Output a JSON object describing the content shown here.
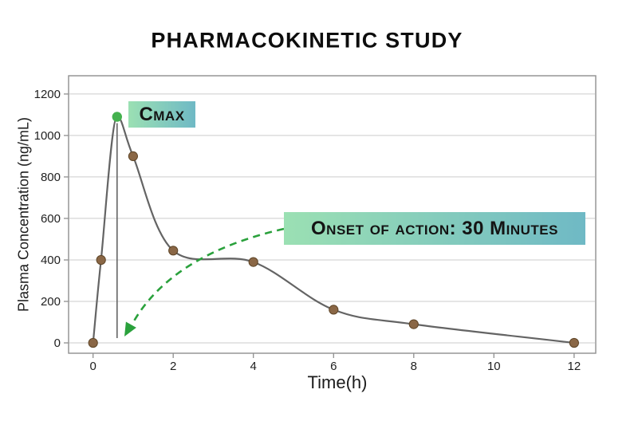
{
  "page": {
    "background": "#ffffff"
  },
  "chart_data": {
    "type": "line",
    "title": "PHARMACOKINETIC STUDY",
    "xlabel": "Time(h)",
    "ylabel": "Plasma Concentration (ng/mL)",
    "x": [
      0,
      0.2,
      0.6,
      1,
      2,
      4,
      6,
      8,
      12
    ],
    "y": [
      0,
      400,
      1090,
      900,
      445,
      390,
      160,
      90,
      0
    ],
    "peak_index": 2,
    "xticks": [
      0,
      2,
      4,
      6,
      8,
      10,
      12
    ],
    "yticks": [
      0,
      200,
      400,
      600,
      800,
      1000,
      1200
    ],
    "xlim": [
      -0.61,
      12.54
    ],
    "ylim": [
      -50,
      1288
    ],
    "grid": "horizontal-only",
    "legend": "none",
    "smooth": true,
    "markers": true,
    "colors": {
      "line": "#646464",
      "marker": "#8a6746",
      "marker_edge": "#5e4527",
      "peak_marker": "#44b14e",
      "arrow": "#2aa13c",
      "gridline": "#cbcbcb",
      "plot_border": "#8f8f8f",
      "tick_text": "#1f1f1f",
      "badge_gradient": [
        "#9be0b3",
        "#6fb9c5"
      ]
    },
    "annotations": {
      "cmax_label": "Cmax",
      "onset_label": "Onset of action: 30 Minutes",
      "arrow_style": "dashed",
      "tmax_drop_line_at_time": 0.6
    }
  }
}
